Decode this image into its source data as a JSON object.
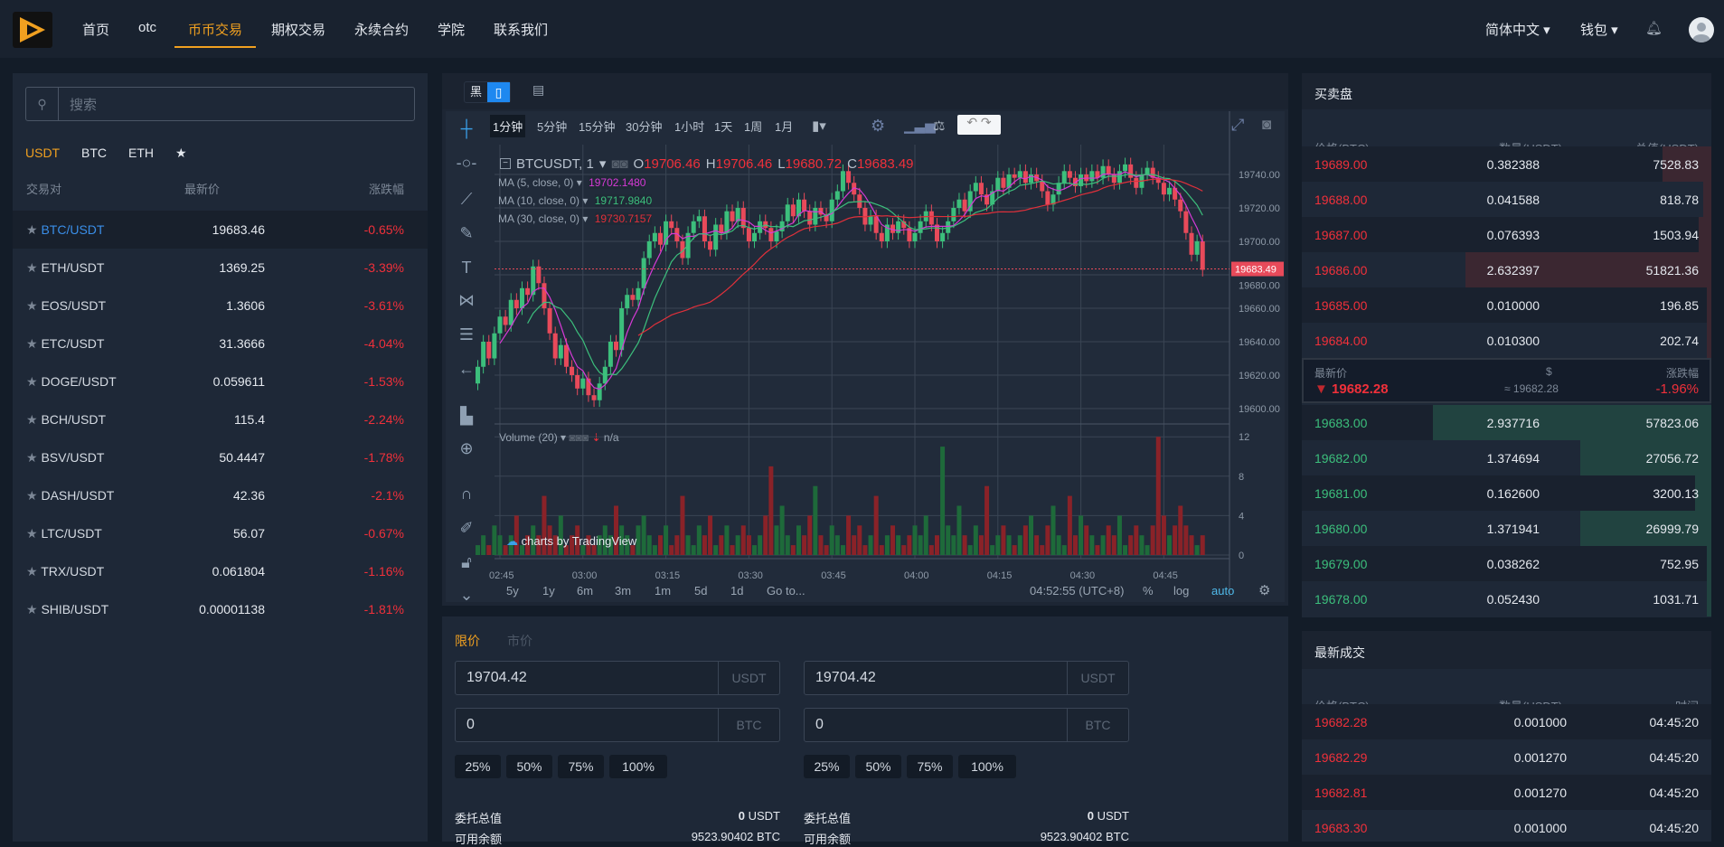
{
  "header": {
    "nav": [
      "首页",
      "otc",
      "币币交易",
      "期权交易",
      "永续合约",
      "学院",
      "联系我们"
    ],
    "active": "币币交易",
    "language": "简体中文",
    "wallet": "钱包"
  },
  "market": {
    "search_placeholder": "搜索",
    "tabs": [
      "USDT",
      "BTC",
      "ETH",
      "★"
    ],
    "active_tab": "USDT",
    "columns": [
      "交易对",
      "最新价",
      "涨跌幅"
    ],
    "rows": [
      [
        "BTC/USDT",
        "19683.46",
        "-0.65%"
      ],
      [
        "ETH/USDT",
        "1369.25",
        "-3.39%"
      ],
      [
        "EOS/USDT",
        "1.3606",
        "-3.61%"
      ],
      [
        "ETC/USDT",
        "31.3666",
        "-4.04%"
      ],
      [
        "DOGE/USDT",
        "0.059611",
        "-1.53%"
      ],
      [
        "BCH/USDT",
        "115.4",
        "-2.24%"
      ],
      [
        "BSV/USDT",
        "50.4447",
        "-1.78%"
      ],
      [
        "DASH/USDT",
        "42.36",
        "-2.1%"
      ],
      [
        "LTC/USDT",
        "56.07",
        "-0.67%"
      ],
      [
        "TRX/USDT",
        "0.061804",
        "-1.16%"
      ],
      [
        "SHIB/USDT",
        "0.00001138",
        "-1.81%"
      ]
    ]
  },
  "chart_top": {
    "theme_black": "黑"
  },
  "chart": {
    "intervals": [
      "1分钟",
      "5分钟",
      "15分钟",
      "30分钟",
      "1小时",
      "1天",
      "1周",
      "1月"
    ],
    "active_interval": "1分钟",
    "symbol": "BTCUSDT, 1",
    "o": "19706.46",
    "h": "19706.46",
    "l": "19680.72",
    "c": "19683.49",
    "ma": [
      {
        "label": "MA (5, close, 0)",
        "value": "19702.1480",
        "color": "#d63ad6"
      },
      {
        "label": "MA (10, close, 0)",
        "value": "19717.9840",
        "color": "#3cbf7c"
      },
      {
        "label": "MA (30, close, 0)",
        "value": "19730.7157",
        "color": "#e0303a"
      }
    ],
    "last_price_label": "19683.49",
    "volume_label": "Volume (20)",
    "volume_na": "n/a",
    "watermark": "charts by TradingView",
    "ranges": [
      "5y",
      "1y",
      "6m",
      "3m",
      "1m",
      "5d",
      "1d",
      "Go to..."
    ],
    "clock": "04:52:55 (UTC+8)",
    "opts": [
      "%",
      "log",
      "auto"
    ]
  },
  "chart_data": {
    "type": "candlestick",
    "interval": "1m",
    "start_time": "02:41",
    "price_ticks": [
      "19600.00",
      "19620.00",
      "19640.00",
      "19660.00",
      "19680.00",
      "19700.00",
      "19720.00",
      "19740.00"
    ],
    "volume_ticks": [
      "0",
      "4",
      "8",
      "12"
    ],
    "time_ticks": [
      "02:45",
      "03:00",
      "03:15",
      "03:30",
      "03:45",
      "04:00",
      "04:15",
      "04:30",
      "04:45"
    ],
    "first_open": 19615,
    "closes": [
      19625,
      19640,
      19630,
      19645,
      19655,
      19650,
      19665,
      19660,
      19672,
      19668,
      19685,
      19675,
      19660,
      19645,
      19630,
      19638,
      19625,
      19620,
      19612,
      19618,
      19608,
      19605,
      19615,
      19625,
      19640,
      19635,
      19660,
      19668,
      19665,
      19672,
      19690,
      19700,
      19705,
      19698,
      19712,
      19708,
      19700,
      19690,
      19705,
      19712,
      19715,
      19700,
      19695,
      19710,
      19705,
      19718,
      19712,
      19720,
      19708,
      19700,
      19705,
      19712,
      19708,
      19700,
      19706,
      19712,
      19722,
      19715,
      19725,
      19718,
      19710,
      19720,
      19716,
      19712,
      19725,
      19730,
      19742,
      19735,
      19728,
      19720,
      19710,
      19715,
      19705,
      19700,
      19710,
      19705,
      19712,
      19708,
      19700,
      19705,
      19712,
      19718,
      19710,
      19700,
      19705,
      19712,
      19720,
      19725,
      19718,
      19730,
      19735,
      19728,
      19722,
      19730,
      19738,
      19732,
      19740,
      19738,
      19742,
      19735,
      19740,
      19736,
      19730,
      19722,
      19728,
      19735,
      19742,
      19738,
      19733,
      19740,
      19736,
      19742,
      19738,
      19745,
      19740,
      19735,
      19742,
      19746,
      19738,
      19732,
      19740,
      19744,
      19738,
      19735,
      19728,
      19732,
      19725,
      19718,
      19705,
      19692,
      19700,
      19683
    ],
    "volumes": [
      1,
      2,
      1,
      3,
      2,
      1,
      2,
      4,
      1,
      2,
      3,
      2,
      6,
      3,
      2,
      4,
      1,
      2,
      3,
      1,
      2,
      1,
      2,
      3,
      2,
      5,
      3,
      2,
      1,
      3,
      4,
      2,
      1,
      2,
      3,
      1,
      2,
      6,
      2,
      1,
      3,
      2,
      4,
      1,
      2,
      3,
      1,
      2,
      3,
      2,
      1,
      2,
      4,
      9,
      3,
      5,
      2,
      1,
      3,
      2,
      4,
      7,
      2,
      1,
      3,
      2,
      1,
      4,
      2,
      3,
      1,
      2,
      6,
      1,
      2,
      3,
      2,
      1,
      2,
      3,
      2,
      4,
      1,
      2,
      11,
      3,
      2,
      5,
      2,
      1,
      3,
      2,
      7,
      1,
      2,
      3,
      2,
      1,
      2,
      3,
      4,
      2,
      1,
      3,
      5,
      2,
      1,
      6,
      2,
      4,
      3,
      2,
      1,
      2,
      3,
      2,
      4,
      1,
      2,
      3,
      2,
      1,
      3,
      12,
      4,
      2,
      3,
      5,
      3,
      2,
      1,
      2
    ]
  },
  "order_form": {
    "tabs": [
      "限价",
      "市价"
    ],
    "buy": {
      "price": "19704.42",
      "price_unit": "USDT",
      "amount": "0",
      "amount_unit": "BTC",
      "total_label": "委托总值",
      "total": "0",
      "total_unit": "USDT",
      "avail_label": "可用余额",
      "avail": "9523.90402 BTC"
    },
    "sell": {
      "price": "19704.42",
      "price_unit": "USDT",
      "amount": "0",
      "amount_unit": "BTC",
      "total_label": "委托总值",
      "total": "0",
      "total_unit": "USDT",
      "avail_label": "可用余额",
      "avail": "9523.90402 BTC"
    },
    "pcts": [
      "25%",
      "50%",
      "75%",
      "100%"
    ]
  },
  "orderbook": {
    "title": "买卖盘",
    "columns": [
      "价格(BTC)",
      "数量(USDT)",
      "总值(USDT)"
    ],
    "asks": [
      [
        "19689.00",
        "0.382388",
        "7528.83",
        0.12
      ],
      [
        "19688.00",
        "0.041588",
        "818.78",
        0.02
      ],
      [
        "19687.00",
        "0.076393",
        "1503.94",
        0.03
      ],
      [
        "19686.00",
        "2.632397",
        "51821.36",
        0.6
      ],
      [
        "19685.00",
        "0.010000",
        "196.85",
        0.01
      ],
      [
        "19684.00",
        "0.010300",
        "202.74",
        0.01
      ]
    ],
    "mid": {
      "label_last": "最新价",
      "label_usd": "$",
      "label_change": "涨跌幅",
      "last": "19682.28",
      "usd": "≈ 19682.28",
      "change": "-1.96%"
    },
    "bids": [
      [
        "19683.00",
        "2.937716",
        "57823.06",
        0.68
      ],
      [
        "19682.00",
        "1.374694",
        "27056.72",
        0.32
      ],
      [
        "19681.00",
        "0.162600",
        "3200.13",
        0.04
      ],
      [
        "19680.00",
        "1.371941",
        "26999.79",
        0.32
      ],
      [
        "19679.00",
        "0.038262",
        "752.95",
        0.01
      ],
      [
        "19678.00",
        "0.052430",
        "1031.71",
        0.01
      ]
    ]
  },
  "trades": {
    "title": "最新成交",
    "columns": [
      "价格(BTC)",
      "数量(USDT)",
      "时间"
    ],
    "rows": [
      [
        "19682.28",
        "0.001000",
        "04:45:20"
      ],
      [
        "19682.29",
        "0.001270",
        "04:45:20"
      ],
      [
        "19682.81",
        "0.001270",
        "04:45:20"
      ],
      [
        "19683.30",
        "0.001000",
        "04:45:20"
      ]
    ]
  }
}
